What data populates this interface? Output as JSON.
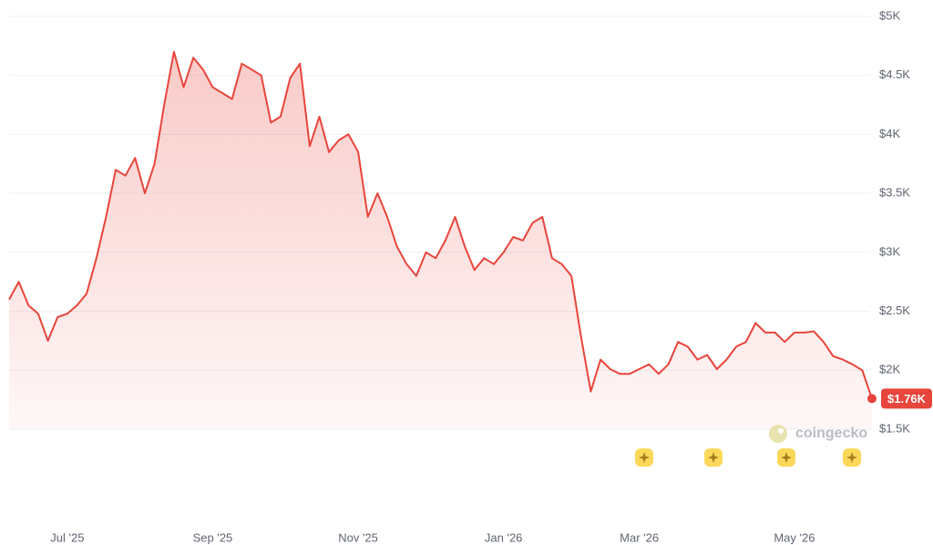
{
  "chart_data": {
    "type": "line",
    "color": "#e8453c",
    "watermark": "coingecko",
    "categories": [
      null,
      null,
      null,
      null,
      null,
      null,
      "Jul '25",
      null,
      null,
      null,
      null,
      null,
      null,
      null,
      null,
      null,
      null,
      null,
      null,
      null,
      null,
      "Sep '25",
      null,
      null,
      null,
      null,
      null,
      null,
      null,
      null,
      null,
      null,
      null,
      null,
      null,
      null,
      "Nov '25",
      null,
      null,
      null,
      null,
      null,
      null,
      null,
      null,
      null,
      null,
      null,
      null,
      null,
      null,
      "Jan '26",
      null,
      null,
      null,
      null,
      null,
      null,
      null,
      null,
      null,
      null,
      null,
      null,
      null,
      "Mar '26",
      null,
      null,
      null,
      null,
      null,
      null,
      null,
      null,
      null,
      null,
      null,
      null,
      null,
      null,
      null,
      "May '26",
      null,
      null,
      null,
      null,
      null,
      null,
      null,
      null
    ],
    "values": [
      2600,
      2750,
      2550,
      2480,
      2250,
      2450,
      2480,
      2550,
      2650,
      2950,
      3300,
      3700,
      3650,
      3800,
      3500,
      3750,
      4250,
      4700,
      4400,
      4650,
      4550,
      4400,
      4350,
      4300,
      4600,
      4550,
      4500,
      4100,
      4150,
      4480,
      4600,
      3900,
      4150,
      3850,
      3950,
      4000,
      3850,
      3300,
      3500,
      3300,
      3050,
      2900,
      2800,
      3000,
      2950,
      3100,
      3300,
      3050,
      2850,
      2950,
      2900,
      3000,
      3130,
      3100,
      3250,
      3300,
      2950,
      2900,
      2800,
      2280,
      1820,
      2090,
      2010,
      1970,
      1970,
      2010,
      2050,
      1970,
      2050,
      2240,
      2200,
      2090,
      2130,
      2010,
      2090,
      2200,
      2240,
      2400,
      2320,
      2320,
      2240,
      2320,
      2320,
      2330,
      2240,
      2120,
      2090,
      2050,
      2000,
      1760
    ],
    "value_labels": [
      null,
      null,
      null,
      null,
      null,
      null,
      null,
      null,
      null,
      null,
      null,
      null,
      null,
      null,
      null,
      null,
      null,
      null,
      null,
      null,
      null,
      null,
      null,
      null,
      null,
      null,
      null,
      null,
      null,
      null,
      null,
      null,
      null,
      null,
      null,
      null,
      null,
      null,
      null,
      null,
      null,
      null,
      null,
      null,
      null,
      null,
      null,
      null,
      null,
      null,
      null,
      null,
      null,
      null,
      null,
      null,
      null,
      null,
      null,
      null,
      null,
      null,
      null,
      null,
      null,
      null,
      null,
      null,
      null,
      null,
      null,
      null,
      null,
      null,
      null,
      null,
      null,
      null,
      null,
      null,
      null,
      null,
      null,
      null,
      null,
      null,
      null,
      null,
      null,
      "$1.76K"
    ],
    "ylim": [
      1500,
      5000
    ],
    "yticks": [
      {
        "value": 1500,
        "label": "$1.5K"
      },
      {
        "value": 2000,
        "label": "$2K"
      },
      {
        "value": 2500,
        "label": "$2.5K"
      },
      {
        "value": 3000,
        "label": "$3K"
      },
      {
        "value": 3500,
        "label": "$3.5K"
      },
      {
        "value": 4000,
        "label": "$4K"
      },
      {
        "value": 4500,
        "label": "$4.5K"
      },
      {
        "value": 5000,
        "label": "$5K"
      }
    ],
    "grid": true
  }
}
